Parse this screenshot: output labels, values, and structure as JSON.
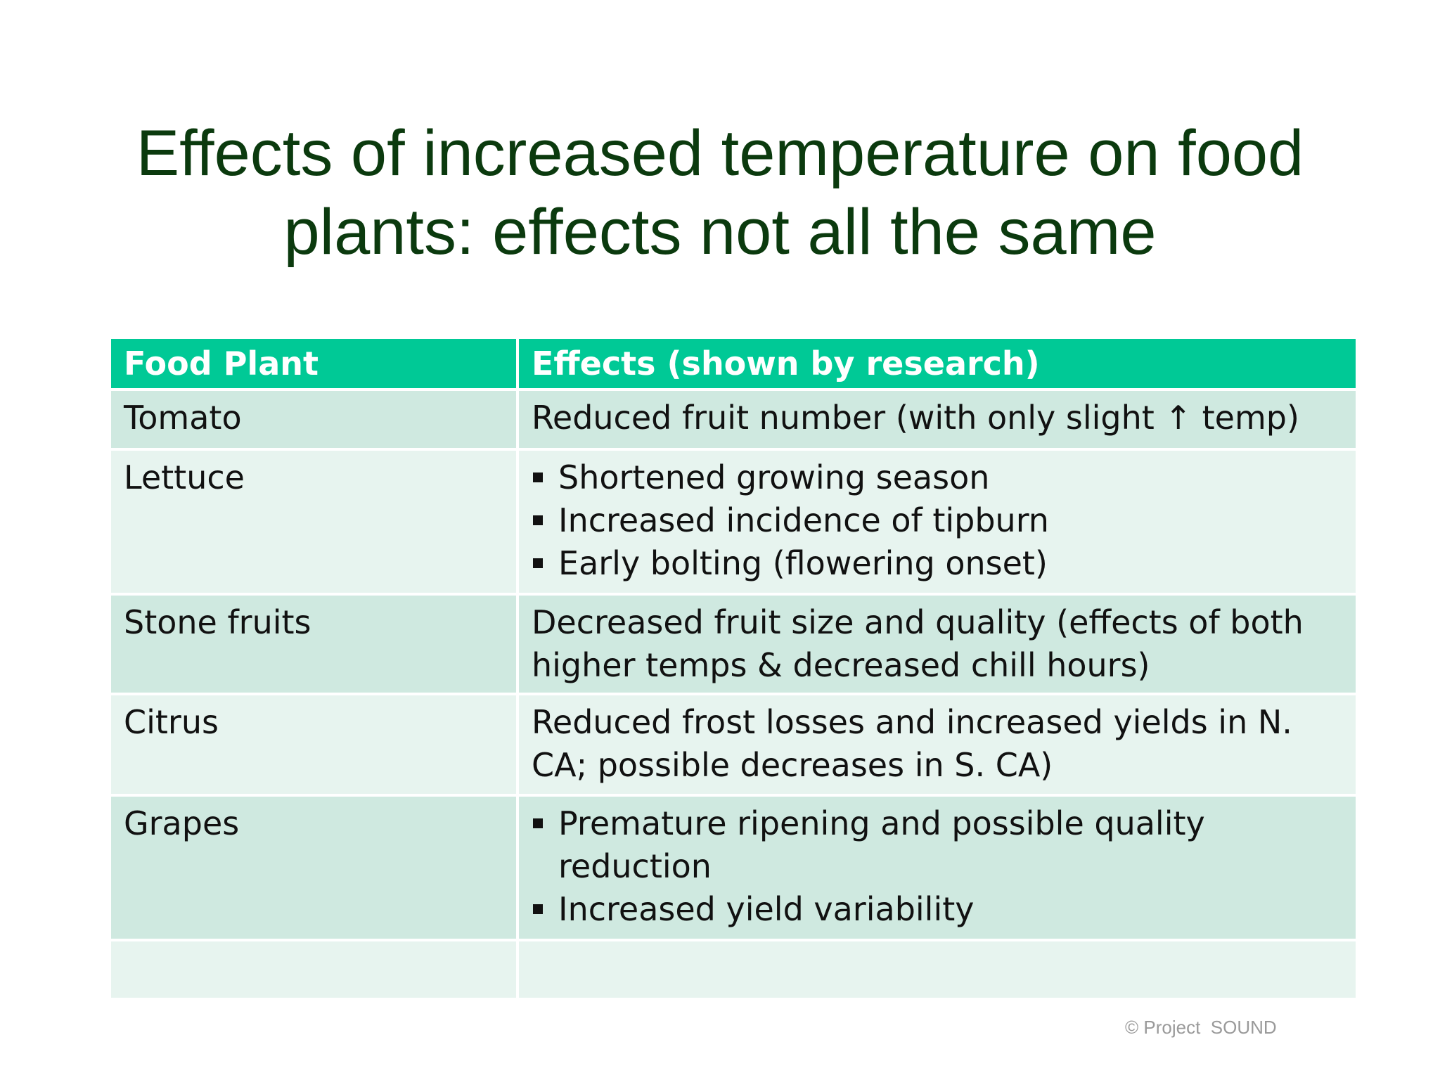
{
  "slide": {
    "title_lines": [
      "Effects of increased temperature on food",
      "plants: effects not all the same"
    ],
    "copyright": "© Project  SOUND"
  },
  "table": {
    "headers": [
      "Food Plant",
      "Effects (shown by research)"
    ],
    "rows": [
      {
        "plant": "Tomato",
        "effect": "Reduced fruit number (with only slight ↑ temp)"
      },
      {
        "plant": "Lettuce",
        "effects": [
          "Shortened growing season",
          "Increased incidence of tipburn",
          "Early bolting (flowering onset)"
        ]
      },
      {
        "plant": "Stone fruits",
        "effect": "Decreased fruit size and quality (effects of both higher temps & decreased chill hours)"
      },
      {
        "plant": "Citrus",
        "effect": "Reduced frost losses and increased yields in N. CA; possible decreases in S. CA)"
      },
      {
        "plant": "Grapes",
        "effects": [
          "Premature ripening and possible quality reduction",
          "Increased yield variability"
        ]
      }
    ]
  },
  "colors": {
    "title": "#0b3a0e",
    "header_bg": "#00c996",
    "row_dark": "#cfe9e0",
    "row_light": "#e7f4ef"
  }
}
